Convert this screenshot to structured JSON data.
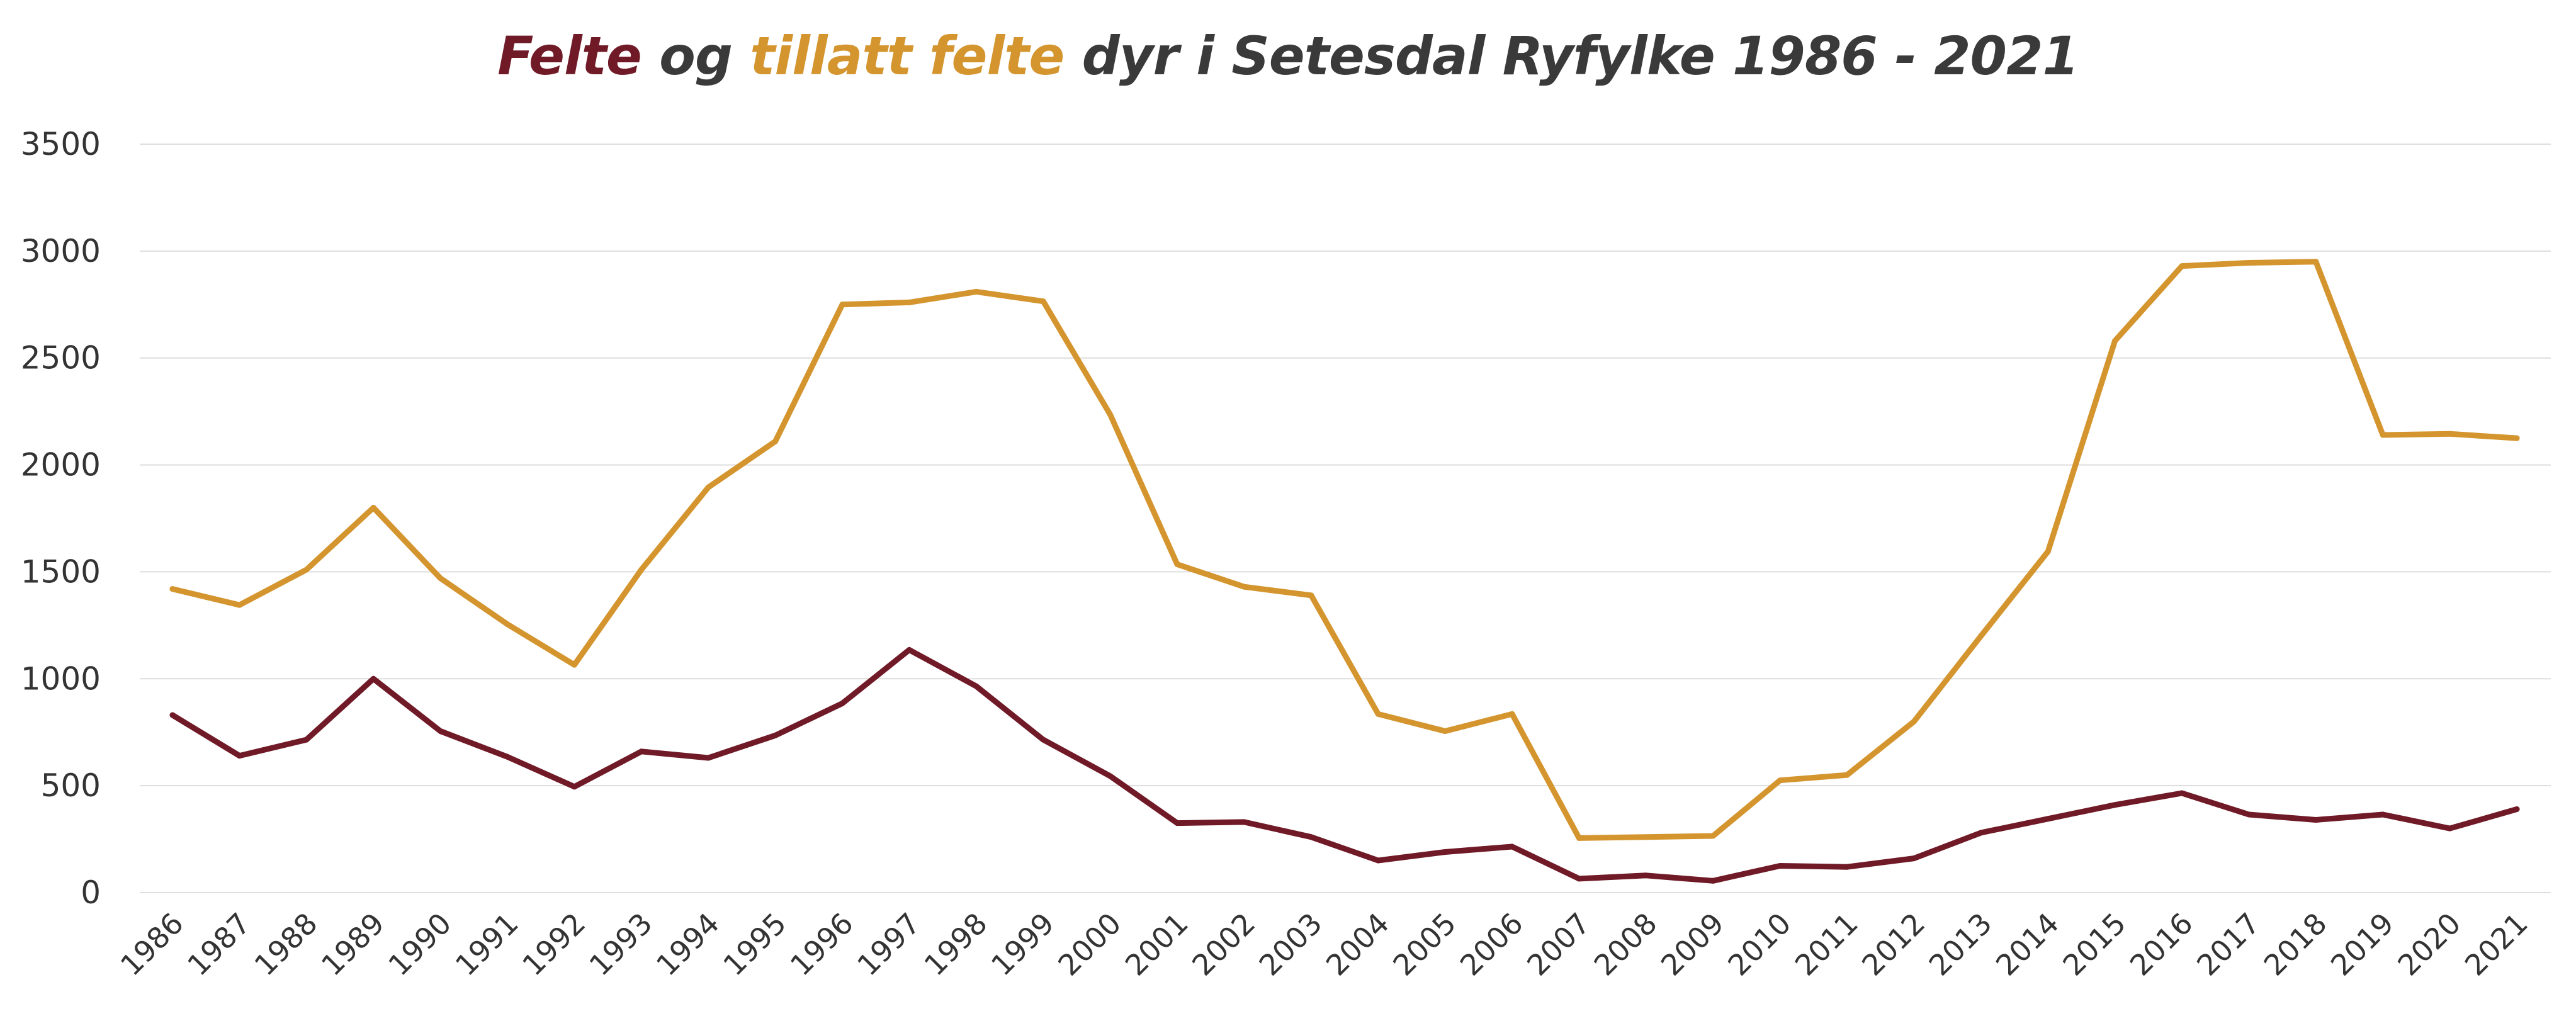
{
  "title": {
    "part1": "Felte",
    "part2": " og ",
    "part3": "tillatt felte",
    "part4": " dyr i Setesdal Ryfylke 1986 - 2021"
  },
  "colors": {
    "felte": "#701a27",
    "tillatt": "#d4952f",
    "title_text": "#3a3a3a",
    "grid": "#dedede"
  },
  "chart_data": {
    "type": "line",
    "title": "Felte og tillatt felte dyr i Setesdal Ryfylke 1986 - 2021",
    "xlabel": "",
    "ylabel": "",
    "ylim": [
      0,
      3500
    ],
    "yticks": [
      "0",
      "500",
      "1000",
      "1500",
      "2000",
      "2500",
      "3000",
      "3500"
    ],
    "grid": true,
    "legend": "none",
    "categories": [
      "1986",
      "1987",
      "1988",
      "1989",
      "1990",
      "1991",
      "1992",
      "1993",
      "1994",
      "1995",
      "1996",
      "1997",
      "1998",
      "1999",
      "2000",
      "2001",
      "2002",
      "2003",
      "2004",
      "2005",
      "2006",
      "2007",
      "2008",
      "2009",
      "2010",
      "2011",
      "2012",
      "2013",
      "2014",
      "2015",
      "2016",
      "2017",
      "2018",
      "2019",
      "2020",
      "2021"
    ],
    "series": [
      {
        "name": "tillatt felte",
        "color": "#d4952f",
        "values": [
          1420,
          1345,
          1510,
          1800,
          1470,
          1255,
          1065,
          1510,
          1895,
          2110,
          2750,
          2760,
          2810,
          2765,
          2235,
          1535,
          1430,
          1390,
          835,
          755,
          835,
          255,
          260,
          265,
          525,
          550,
          800,
          1200,
          1595,
          2580,
          2930,
          2945,
          2950,
          2140,
          2145,
          2125
        ]
      },
      {
        "name": "Felte",
        "color": "#701a27",
        "values": [
          830,
          640,
          715,
          1000,
          755,
          635,
          495,
          660,
          630,
          735,
          885,
          1135,
          965,
          715,
          545,
          325,
          330,
          260,
          150,
          190,
          215,
          65,
          80,
          55,
          125,
          120,
          160,
          280,
          345,
          410,
          465,
          365,
          340,
          365,
          300,
          390
        ]
      }
    ]
  }
}
